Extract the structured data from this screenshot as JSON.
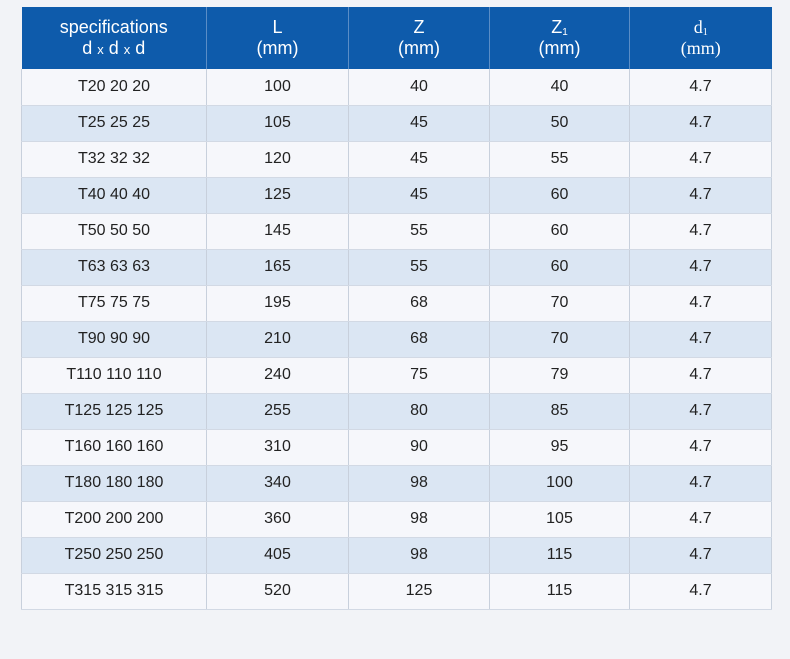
{
  "header": {
    "spec_line1": "specifications",
    "spec_line2_d1": "d",
    "spec_line2_x1": "x",
    "spec_line2_d2": "d",
    "spec_line2_x2": "x",
    "spec_line2_d3": "d",
    "col_l": "L",
    "col_z": "Z",
    "col_z1_base": "Z",
    "col_z1_sub": "1",
    "col_d1_base": "d",
    "col_d1_sub": "1",
    "unit": "(mm)"
  },
  "rows": [
    [
      "T20 20 20",
      "100",
      "40",
      "40",
      "4.7"
    ],
    [
      "T25 25 25",
      "105",
      "45",
      "50",
      "4.7"
    ],
    [
      "T32 32 32",
      "120",
      "45",
      "55",
      "4.7"
    ],
    [
      "T40 40 40",
      "125",
      "45",
      "60",
      "4.7"
    ],
    [
      "T50 50 50",
      "145",
      "55",
      "60",
      "4.7"
    ],
    [
      "T63 63 63",
      "165",
      "55",
      "60",
      "4.7"
    ],
    [
      "T75 75 75",
      "195",
      "68",
      "70",
      "4.7"
    ],
    [
      "T90 90 90",
      "210",
      "68",
      "70",
      "4.7"
    ],
    [
      "T110 110 110",
      "240",
      "75",
      "79",
      "4.7"
    ],
    [
      "T125 125 125",
      "255",
      "80",
      "85",
      "4.7"
    ],
    [
      "T160 160 160",
      "310",
      "90",
      "95",
      "4.7"
    ],
    [
      "T180 180 180",
      "340",
      "98",
      "100",
      "4.7"
    ],
    [
      "T200 200 200",
      "360",
      "98",
      "105",
      "4.7"
    ],
    [
      "T250 250 250",
      "405",
      "98",
      "115",
      "4.7"
    ],
    [
      "T315 315 315",
      "520",
      "125",
      "115",
      "4.7"
    ]
  ],
  "colors": {
    "header_bg": "#0e5bab",
    "header_text": "#ffffff",
    "row_odd": "#f6f7fb",
    "row_even": "#dbe6f3",
    "page_bg": "#f2f3f7"
  }
}
